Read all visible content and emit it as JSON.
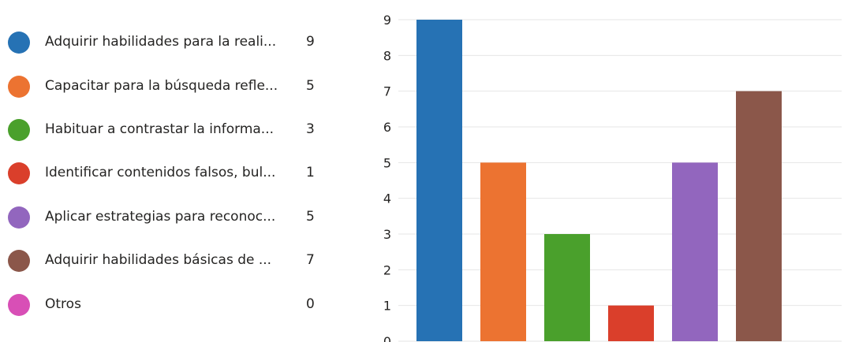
{
  "legend": {
    "items": [
      {
        "label": "Adquirir habilidades para la reali...",
        "count": "9",
        "color": "#2672b4"
      },
      {
        "label": "Capacitar para la búsqueda refle...",
        "count": "5",
        "color": "#ec7331"
      },
      {
        "label": "Habituar a contrastar la informa...",
        "count": "3",
        "color": "#4aa02c"
      },
      {
        "label": "Identificar contenidos falsos, bul...",
        "count": "1",
        "color": "#da3f2b"
      },
      {
        "label": "Aplicar estrategias para reconoc...",
        "count": "5",
        "color": "#9266be"
      },
      {
        "label": "Adquirir habilidades básicas de ...",
        "count": "7",
        "color": "#8b574a"
      },
      {
        "label": "Otros",
        "count": "0",
        "color": "#d84fb6"
      }
    ]
  },
  "chart_data": {
    "type": "bar",
    "categories": [
      "Adquirir habilidades para la reali...",
      "Capacitar para la búsqueda refle...",
      "Habituar a contrastar la informa...",
      "Identificar contenidos falsos, bul...",
      "Aplicar estrategias para reconoc...",
      "Adquirir habilidades básicas de ...",
      "Otros"
    ],
    "values": [
      9,
      5,
      3,
      1,
      5,
      7,
      0
    ],
    "colors": [
      "#2672b4",
      "#ec7331",
      "#4aa02c",
      "#da3f2b",
      "#9266be",
      "#8b574a",
      "#d84fb6"
    ],
    "ylim": [
      0,
      9
    ],
    "yticks": [
      "0",
      "1",
      "2",
      "3",
      "4",
      "5",
      "6",
      "7",
      "8",
      "9"
    ],
    "grid": true,
    "legend_position": "left"
  }
}
